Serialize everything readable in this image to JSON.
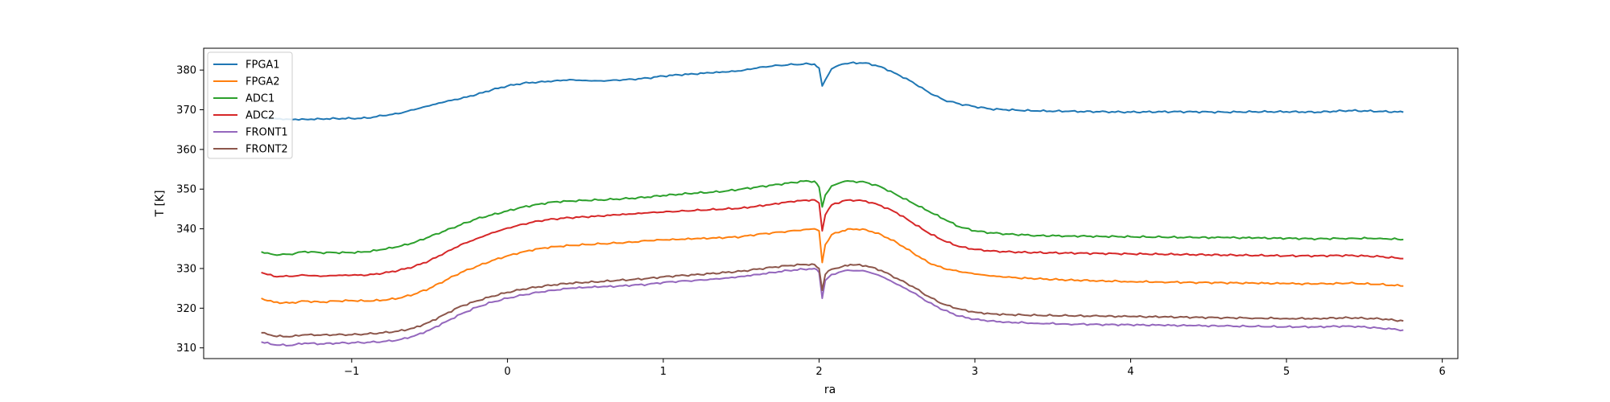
{
  "chart_data": {
    "type": "line",
    "title": "",
    "xlabel": "ra",
    "ylabel": "T [K]",
    "xlim": [
      -1.95,
      6.1
    ],
    "ylim": [
      307.3,
      385.5
    ],
    "xticks": [
      -1,
      0,
      1,
      2,
      3,
      4,
      5,
      6
    ],
    "xtick_labels": [
      "−1",
      "0",
      "1",
      "2",
      "3",
      "4",
      "5",
      "6"
    ],
    "yticks": [
      310,
      320,
      330,
      340,
      350,
      360,
      370,
      380
    ],
    "ytick_labels": [
      "310",
      "320",
      "330",
      "340",
      "350",
      "360",
      "370",
      "380"
    ],
    "grid": false,
    "legend": "top-left",
    "x": [
      -1.58,
      -1.5,
      -1.4,
      -1.3,
      -1.2,
      -1.1,
      -1.0,
      -0.9,
      -0.8,
      -0.7,
      -0.6,
      -0.5,
      -0.4,
      -0.3,
      -0.2,
      -0.1,
      0.0,
      0.1,
      0.2,
      0.3,
      0.4,
      0.5,
      0.6,
      0.7,
      0.8,
      0.9,
      1.0,
      1.1,
      1.2,
      1.3,
      1.4,
      1.5,
      1.6,
      1.7,
      1.8,
      1.9,
      1.97,
      2.0,
      2.02,
      2.04,
      2.08,
      2.15,
      2.2,
      2.3,
      2.4,
      2.5,
      2.6,
      2.7,
      2.8,
      2.9,
      3.0,
      3.1,
      3.2,
      3.4,
      3.6,
      3.8,
      4.0,
      4.2,
      4.4,
      4.6,
      4.8,
      5.0,
      5.2,
      5.4,
      5.6,
      5.75
    ],
    "series": [
      {
        "name": "FPGA1",
        "color": "#1f77b4",
        "values": [
          368.0,
          367.8,
          367.6,
          367.6,
          367.7,
          367.8,
          367.8,
          367.9,
          368.5,
          369.0,
          370.0,
          371.0,
          372.0,
          372.8,
          373.8,
          375.0,
          376.0,
          376.7,
          377.0,
          377.3,
          377.6,
          377.4,
          377.3,
          377.5,
          377.7,
          378.0,
          378.5,
          378.8,
          379.0,
          379.3,
          379.5,
          379.8,
          380.5,
          381.0,
          381.3,
          381.5,
          381.5,
          380.5,
          376.0,
          377.5,
          380.3,
          381.5,
          381.8,
          381.8,
          380.8,
          379.0,
          377.0,
          374.5,
          372.5,
          371.5,
          370.8,
          370.2,
          370.0,
          369.7,
          369.6,
          369.5,
          369.4,
          369.5,
          369.5,
          369.4,
          369.5,
          369.5,
          369.4,
          369.8,
          369.6,
          369.4
        ]
      },
      {
        "name": "FPGA2",
        "color": "#ff7f0e",
        "values": [
          322.5,
          321.5,
          321.3,
          321.8,
          321.5,
          321.8,
          321.9,
          321.8,
          322.0,
          322.5,
          323.5,
          325.0,
          327.0,
          329.0,
          330.5,
          332.0,
          333.2,
          334.2,
          335.0,
          335.5,
          335.8,
          336.0,
          336.2,
          336.4,
          336.6,
          337.0,
          337.2,
          337.3,
          337.5,
          337.6,
          337.8,
          338.0,
          338.6,
          339.0,
          339.4,
          339.8,
          340.0,
          339.5,
          331.5,
          336.0,
          338.5,
          339.5,
          340.0,
          339.8,
          338.5,
          336.5,
          334.0,
          331.5,
          330.0,
          329.2,
          328.6,
          328.1,
          327.8,
          327.4,
          327.1,
          326.9,
          326.7,
          326.6,
          326.5,
          326.4,
          326.3,
          326.2,
          326.1,
          326.3,
          326.0,
          325.6
        ]
      },
      {
        "name": "ADC1",
        "color": "#2ca02c",
        "values": [
          334.2,
          333.5,
          333.6,
          334.3,
          334.0,
          334.0,
          334.0,
          334.2,
          334.8,
          335.5,
          336.5,
          338.0,
          339.5,
          341.0,
          342.5,
          343.5,
          344.5,
          345.5,
          346.2,
          346.8,
          347.0,
          347.2,
          347.3,
          347.5,
          347.7,
          348.0,
          348.4,
          348.7,
          349.0,
          349.2,
          349.5,
          350.0,
          350.5,
          351.0,
          351.5,
          352.0,
          352.0,
          350.5,
          345.5,
          348.5,
          350.8,
          351.8,
          352.0,
          351.7,
          350.5,
          348.5,
          346.5,
          344.5,
          342.5,
          340.5,
          339.5,
          339.0,
          338.7,
          338.3,
          338.2,
          338.1,
          338.0,
          337.9,
          337.8,
          337.8,
          337.7,
          337.6,
          337.5,
          337.6,
          337.6,
          337.3
        ]
      },
      {
        "name": "ADC2",
        "color": "#d62728",
        "values": [
          329.0,
          328.0,
          328.0,
          328.3,
          328.0,
          328.2,
          328.3,
          328.3,
          328.8,
          329.5,
          330.5,
          332.0,
          334.0,
          336.0,
          337.5,
          339.0,
          340.2,
          341.2,
          342.0,
          342.5,
          342.8,
          343.0,
          343.2,
          343.5,
          343.7,
          344.0,
          344.2,
          344.4,
          344.6,
          344.8,
          345.0,
          345.2,
          345.7,
          346.2,
          346.8,
          347.2,
          347.3,
          346.5,
          339.5,
          343.5,
          346.0,
          347.0,
          347.3,
          347.0,
          345.8,
          344.0,
          341.5,
          339.0,
          337.0,
          335.5,
          334.8,
          334.4,
          334.2,
          334.0,
          333.9,
          333.8,
          333.7,
          333.6,
          333.5,
          333.4,
          333.3,
          333.2,
          333.2,
          333.3,
          333.0,
          332.5
        ]
      },
      {
        "name": "FRONT1",
        "color": "#9467bd",
        "values": [
          311.5,
          310.8,
          310.6,
          311.2,
          311.0,
          311.2,
          311.3,
          311.4,
          311.6,
          312.0,
          313.0,
          314.5,
          316.5,
          318.5,
          320.2,
          321.5,
          322.5,
          323.3,
          324.0,
          324.5,
          325.0,
          325.2,
          325.4,
          325.5,
          325.8,
          326.0,
          326.5,
          326.8,
          327.0,
          327.3,
          327.6,
          328.0,
          328.5,
          329.0,
          329.5,
          329.8,
          330.0,
          329.0,
          322.5,
          327.0,
          328.5,
          329.3,
          329.5,
          329.3,
          328.0,
          326.0,
          324.0,
          321.5,
          319.5,
          318.0,
          317.2,
          316.8,
          316.5,
          316.2,
          316.0,
          315.9,
          315.8,
          315.7,
          315.6,
          315.5,
          315.4,
          315.3,
          315.3,
          315.5,
          315.0,
          314.5
        ]
      },
      {
        "name": "FRONT2",
        "color": "#8c564b",
        "values": [
          313.8,
          313.0,
          312.8,
          313.3,
          313.2,
          313.3,
          313.3,
          313.5,
          313.8,
          314.2,
          315.0,
          316.5,
          318.5,
          320.5,
          321.8,
          323.0,
          324.0,
          324.8,
          325.4,
          325.9,
          326.3,
          326.5,
          326.7,
          327.0,
          327.2,
          327.5,
          327.9,
          328.2,
          328.4,
          328.7,
          329.0,
          329.3,
          329.8,
          330.3,
          330.7,
          331.0,
          331.0,
          330.0,
          324.5,
          328.5,
          329.8,
          330.5,
          331.0,
          330.7,
          329.5,
          327.5,
          325.5,
          323.0,
          321.0,
          319.8,
          319.0,
          318.6,
          318.4,
          318.2,
          318.1,
          318.0,
          317.9,
          317.8,
          317.7,
          317.6,
          317.5,
          317.4,
          317.4,
          317.6,
          317.3,
          316.8
        ]
      }
    ]
  }
}
